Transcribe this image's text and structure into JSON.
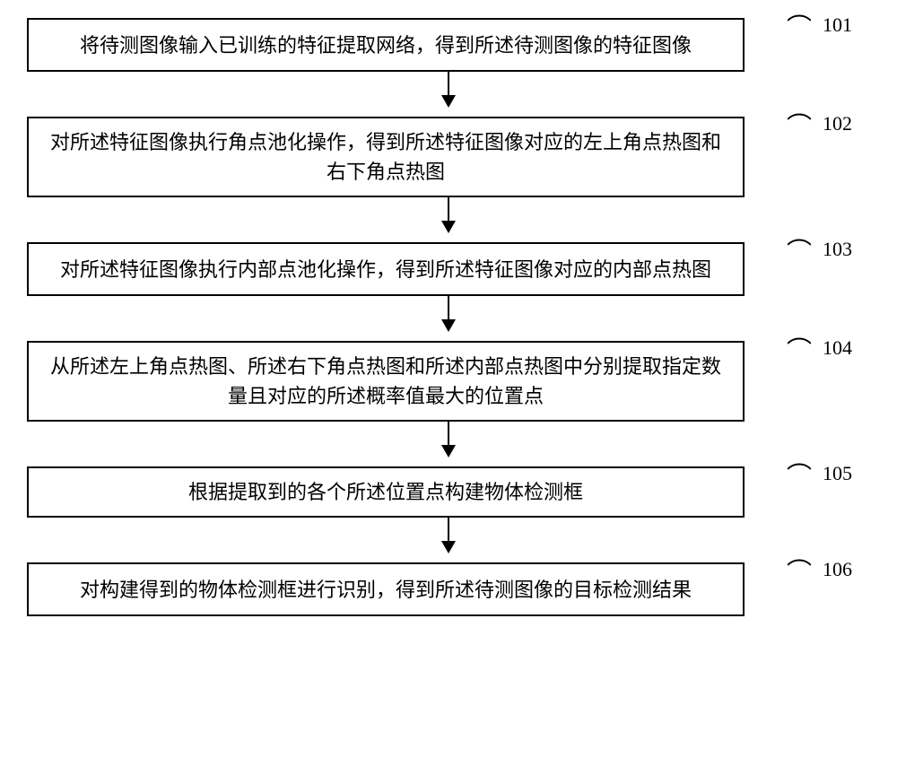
{
  "flowchart": {
    "type": "flowchart",
    "direction": "vertical",
    "box_border_color": "#000000",
    "box_background": "#ffffff",
    "box_border_width": 2,
    "arrow_color": "#000000",
    "font_family": "SimSun",
    "font_size": 22,
    "text_color": "#000000",
    "steps": [
      {
        "id": "101",
        "text": "将待测图像输入已训练的特征提取网络，得到所述待测图像的特征图像",
        "label": "101",
        "two_line": true
      },
      {
        "id": "102",
        "text": "对所述特征图像执行角点池化操作，得到所述特征图像对应的左上角点热图和右下角点热图",
        "label": "102",
        "two_line": true
      },
      {
        "id": "103",
        "text": "对所述特征图像执行内部点池化操作，得到所述特征图像对应的内部点热图",
        "label": "103",
        "two_line": true
      },
      {
        "id": "104",
        "text": "从所述左上角点热图、所述右下角点热图和所述内部点热图中分别提取指定数量且对应的所述概率值最大的位置点",
        "label": "104",
        "two_line": true
      },
      {
        "id": "105",
        "text": "根据提取到的各个所述位置点构建物体检测框",
        "label": "105",
        "two_line": false
      },
      {
        "id": "106",
        "text": "对构建得到的物体检测框进行识别，得到所述待测图像的目标检测结果",
        "label": "106",
        "two_line": true
      }
    ]
  }
}
